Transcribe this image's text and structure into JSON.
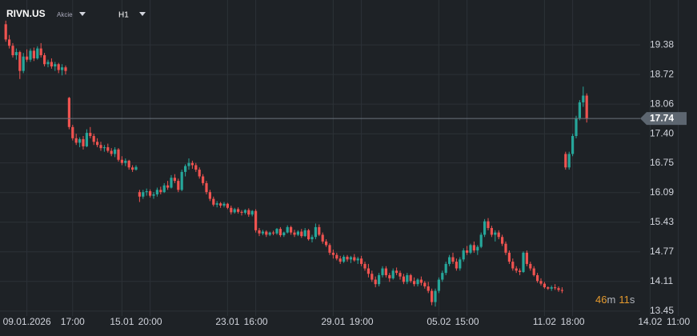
{
  "header": {
    "symbol": "RIVN.US",
    "kind": "Akcie",
    "interval": "H1"
  },
  "countdown": {
    "minutes": "46",
    "minutes_unit": "m",
    "seconds": "11",
    "seconds_unit": "s"
  },
  "chart_data": {
    "type": "candlestick",
    "up_color": "#26a69a",
    "down_color": "#ef5350",
    "grid": true,
    "ylim": [
      13.34,
      20.38
    ],
    "yticks": [
      19.38,
      18.72,
      18.06,
      {
        "value": 17.4,
        "label": "17.40"
      },
      16.75,
      16.09,
      15.43,
      14.77,
      14.11,
      13.45
    ],
    "last_price": 17.74,
    "categories": [
      null,
      null,
      null,
      null,
      null,
      null,
      "09.01.2026",
      null,
      null,
      null,
      null,
      null,
      null,
      null,
      null,
      null,
      null,
      null,
      null,
      "17:00",
      null,
      null,
      null,
      null,
      null,
      null,
      null,
      null,
      null,
      null,
      null,
      null,
      null,
      "15.01",
      null,
      null,
      null,
      null,
      null,
      null,
      null,
      "20:00",
      null,
      null,
      null,
      null,
      null,
      null,
      null,
      null,
      null,
      null,
      null,
      null,
      null,
      null,
      null,
      null,
      null,
      null,
      null,
      null,
      null,
      "23.01",
      null,
      null,
      null,
      null,
      null,
      null,
      null,
      "16:00",
      null,
      null,
      null,
      null,
      null,
      null,
      null,
      null,
      null,
      null,
      null,
      null,
      null,
      null,
      null,
      null,
      null,
      null,
      null,
      null,
      null,
      "29.01",
      null,
      null,
      null,
      null,
      null,
      null,
      null,
      "19:00",
      null,
      null,
      null,
      null,
      null,
      null,
      null,
      null,
      null,
      null,
      null,
      null,
      null,
      null,
      null,
      null,
      null,
      null,
      null,
      null,
      null,
      "05.02",
      null,
      null,
      null,
      null,
      null,
      null,
      null,
      "15:00",
      null,
      null,
      null,
      null,
      null,
      null,
      null,
      null,
      null,
      null,
      null,
      null,
      null,
      null,
      null,
      null,
      null,
      null,
      null,
      null,
      null,
      "11.02",
      null,
      null,
      null,
      null,
      null,
      null,
      null,
      "18:00",
      null,
      null,
      null,
      null,
      null,
      null,
      null,
      null,
      null,
      null,
      null,
      null,
      null,
      null,
      null,
      null,
      null,
      null,
      null,
      null,
      null,
      "14.02",
      null,
      null,
      null,
      null,
      null,
      null,
      null,
      "11:00"
    ],
    "ohlc": [
      [
        19.84,
        19.92,
        19.45,
        19.5
      ],
      [
        19.5,
        19.6,
        19.3,
        19.36
      ],
      [
        19.36,
        19.42,
        19.1,
        19.15
      ],
      [
        19.15,
        19.3,
        19.05,
        19.22
      ],
      [
        19.22,
        19.25,
        18.62,
        18.8
      ],
      [
        18.8,
        19.2,
        18.75,
        19.12
      ],
      [
        19.12,
        19.28,
        19.0,
        19.05
      ],
      [
        19.05,
        19.3,
        19.0,
        19.25
      ],
      [
        19.25,
        19.32,
        19.02,
        19.08
      ],
      [
        19.08,
        19.35,
        19.05,
        19.3
      ],
      [
        19.3,
        19.42,
        19.1,
        19.15
      ],
      [
        19.15,
        19.2,
        18.9,
        18.95
      ],
      [
        18.95,
        19.05,
        18.88,
        19.0
      ],
      [
        19.0,
        19.08,
        18.85,
        18.9
      ],
      [
        18.9,
        19.0,
        18.8,
        18.95
      ],
      [
        18.95,
        18.98,
        18.75,
        18.82
      ],
      [
        18.82,
        18.95,
        18.7,
        18.88
      ],
      [
        18.88,
        18.92,
        18.72,
        18.8
      ],
      [
        18.2,
        18.22,
        17.5,
        17.55
      ],
      [
        17.55,
        17.6,
        17.25,
        17.3
      ],
      [
        17.3,
        17.4,
        17.15,
        17.2
      ],
      [
        17.2,
        17.32,
        17.1,
        17.28
      ],
      [
        17.28,
        17.35,
        17.05,
        17.12
      ],
      [
        17.12,
        17.5,
        17.1,
        17.42
      ],
      [
        17.42,
        17.55,
        17.3,
        17.35
      ],
      [
        17.35,
        17.4,
        17.15,
        17.22
      ],
      [
        17.22,
        17.3,
        17.1,
        17.15
      ],
      [
        17.15,
        17.22,
        17.02,
        17.08
      ],
      [
        17.08,
        17.15,
        17.0,
        17.1
      ],
      [
        17.1,
        17.18,
        16.98,
        17.02
      ],
      [
        17.02,
        17.08,
        16.9,
        16.95
      ],
      [
        16.95,
        17.1,
        16.88,
        17.05
      ],
      [
        17.05,
        17.08,
        16.78,
        16.82
      ],
      [
        16.82,
        16.9,
        16.7,
        16.75
      ],
      [
        16.75,
        16.85,
        16.68,
        16.8
      ],
      [
        16.8,
        16.82,
        16.6,
        16.65
      ],
      [
        16.65,
        16.7,
        16.55,
        16.6
      ],
      [
        16.6,
        16.7,
        16.58,
        16.66
      ],
      [
        16.1,
        16.15,
        15.88,
        16.0
      ],
      [
        16.0,
        16.15,
        15.95,
        16.1
      ],
      [
        16.1,
        16.18,
        16.02,
        16.12
      ],
      [
        16.12,
        16.16,
        15.98,
        16.02
      ],
      [
        16.02,
        16.1,
        15.95,
        16.05
      ],
      [
        16.05,
        16.2,
        16.0,
        16.15
      ],
      [
        16.15,
        16.22,
        16.05,
        16.1
      ],
      [
        16.1,
        16.3,
        16.08,
        16.25
      ],
      [
        16.25,
        16.35,
        16.15,
        16.2
      ],
      [
        16.2,
        16.48,
        16.18,
        16.42
      ],
      [
        16.42,
        16.5,
        16.3,
        16.35
      ],
      [
        16.35,
        16.4,
        16.1,
        16.15
      ],
      [
        16.15,
        16.6,
        16.12,
        16.55
      ],
      [
        16.55,
        16.72,
        16.45,
        16.68
      ],
      [
        16.68,
        16.85,
        16.6,
        16.75
      ],
      [
        16.75,
        16.8,
        16.62,
        16.7
      ],
      [
        16.7,
        16.75,
        16.55,
        16.6
      ],
      [
        16.6,
        16.65,
        16.4,
        16.45
      ],
      [
        16.45,
        16.5,
        16.25,
        16.3
      ],
      [
        16.3,
        16.35,
        16.05,
        16.1
      ],
      [
        16.1,
        16.15,
        15.9,
        15.95
      ],
      [
        15.95,
        16.0,
        15.78,
        15.82
      ],
      [
        15.82,
        15.9,
        15.76,
        15.85
      ],
      [
        15.85,
        15.88,
        15.75,
        15.8
      ],
      [
        15.8,
        15.88,
        15.76,
        15.84
      ],
      [
        15.84,
        15.86,
        15.72,
        15.75
      ],
      [
        15.75,
        15.8,
        15.6,
        15.65
      ],
      [
        15.65,
        15.75,
        15.62,
        15.72
      ],
      [
        15.72,
        15.76,
        15.62,
        15.66
      ],
      [
        15.66,
        15.7,
        15.58,
        15.64
      ],
      [
        15.64,
        15.72,
        15.6,
        15.7
      ],
      [
        15.7,
        15.74,
        15.55,
        15.6
      ],
      [
        15.6,
        15.7,
        15.56,
        15.68
      ],
      [
        15.68,
        15.72,
        15.2,
        15.25
      ],
      [
        15.25,
        15.3,
        15.12,
        15.18
      ],
      [
        15.18,
        15.26,
        15.14,
        15.22
      ],
      [
        15.22,
        15.25,
        15.1,
        15.15
      ],
      [
        15.15,
        15.22,
        15.12,
        15.2
      ],
      [
        15.2,
        15.24,
        15.14,
        15.18
      ],
      [
        15.18,
        15.3,
        15.15,
        15.28
      ],
      [
        15.28,
        15.32,
        15.1,
        15.14
      ],
      [
        15.14,
        15.22,
        15.1,
        15.2
      ],
      [
        15.2,
        15.36,
        15.18,
        15.32
      ],
      [
        15.32,
        15.35,
        15.15,
        15.2
      ],
      [
        15.2,
        15.26,
        15.1,
        15.15
      ],
      [
        15.15,
        15.25,
        15.12,
        15.22
      ],
      [
        15.22,
        15.28,
        15.08,
        15.12
      ],
      [
        15.12,
        15.3,
        15.1,
        15.25
      ],
      [
        15.25,
        15.28,
        15.02,
        15.05
      ],
      [
        15.05,
        15.15,
        14.98,
        15.1
      ],
      [
        15.1,
        15.4,
        15.05,
        15.32
      ],
      [
        15.32,
        15.38,
        15.12,
        15.15
      ],
      [
        15.15,
        15.2,
        14.95,
        15.0
      ],
      [
        15.0,
        15.05,
        14.88,
        14.92
      ],
      [
        14.92,
        14.96,
        14.7,
        14.75
      ],
      [
        14.75,
        14.82,
        14.62,
        14.7
      ],
      [
        14.7,
        14.75,
        14.58,
        14.62
      ],
      [
        14.62,
        14.68,
        14.5,
        14.55
      ],
      [
        14.55,
        14.7,
        14.52,
        14.66
      ],
      [
        14.66,
        14.7,
        14.55,
        14.6
      ],
      [
        14.6,
        14.68,
        14.52,
        14.65
      ],
      [
        14.65,
        14.72,
        14.55,
        14.58
      ],
      [
        14.58,
        14.66,
        14.5,
        14.62
      ],
      [
        14.62,
        14.68,
        14.45,
        14.5
      ],
      [
        14.5,
        14.55,
        14.35,
        14.4
      ],
      [
        14.4,
        14.5,
        14.2,
        14.28
      ],
      [
        14.28,
        14.35,
        14.1,
        14.15
      ],
      [
        14.15,
        14.22,
        13.98,
        14.05
      ],
      [
        14.05,
        14.3,
        14.0,
        14.25
      ],
      [
        14.25,
        14.45,
        14.2,
        14.4
      ],
      [
        14.4,
        14.45,
        14.2,
        14.25
      ],
      [
        14.25,
        14.3,
        14.1,
        14.18
      ],
      [
        14.18,
        14.4,
        14.15,
        14.35
      ],
      [
        14.35,
        14.42,
        14.25,
        14.3
      ],
      [
        14.3,
        14.35,
        14.15,
        14.22
      ],
      [
        14.22,
        14.28,
        14.05,
        14.1
      ],
      [
        14.1,
        14.3,
        14.05,
        14.25
      ],
      [
        14.25,
        14.28,
        14.08,
        14.12
      ],
      [
        14.12,
        14.2,
        14.0,
        14.05
      ],
      [
        14.05,
        14.18,
        14.0,
        14.15
      ],
      [
        14.15,
        14.22,
        14.02,
        14.08
      ],
      [
        14.08,
        14.12,
        13.95,
        14.0
      ],
      [
        14.0,
        14.1,
        13.85,
        13.9
      ],
      [
        13.9,
        13.95,
        13.58,
        13.65
      ],
      [
        13.65,
        13.95,
        13.55,
        13.9
      ],
      [
        13.9,
        14.2,
        13.85,
        14.15
      ],
      [
        14.15,
        14.35,
        14.1,
        14.3
      ],
      [
        14.3,
        14.55,
        14.25,
        14.5
      ],
      [
        14.5,
        14.7,
        14.45,
        14.65
      ],
      [
        14.65,
        14.75,
        14.5,
        14.55
      ],
      [
        14.55,
        14.62,
        14.35,
        14.4
      ],
      [
        14.4,
        14.65,
        14.35,
        14.6
      ],
      [
        14.6,
        14.85,
        14.55,
        14.8
      ],
      [
        14.8,
        14.9,
        14.7,
        14.75
      ],
      [
        14.75,
        14.95,
        14.72,
        14.92
      ],
      [
        14.92,
        15.0,
        14.75,
        14.8
      ],
      [
        14.8,
        14.92,
        14.7,
        14.88
      ],
      [
        14.88,
        15.2,
        14.85,
        15.15
      ],
      [
        15.15,
        15.5,
        15.1,
        15.45
      ],
      [
        15.45,
        15.52,
        15.25,
        15.3
      ],
      [
        15.3,
        15.35,
        15.1,
        15.15
      ],
      [
        15.15,
        15.25,
        15.0,
        15.2
      ],
      [
        15.2,
        15.25,
        15.05,
        15.1
      ],
      [
        15.1,
        15.15,
        14.9,
        14.95
      ],
      [
        14.95,
        15.0,
        14.7,
        14.75
      ],
      [
        14.75,
        14.8,
        14.5,
        14.55
      ],
      [
        14.55,
        14.62,
        14.35,
        14.4
      ],
      [
        14.4,
        14.45,
        14.3,
        14.35
      ],
      [
        14.35,
        14.4,
        14.25,
        14.32
      ],
      [
        14.32,
        14.78,
        14.3,
        14.75
      ],
      [
        14.75,
        14.8,
        14.45,
        14.5
      ],
      [
        14.5,
        14.55,
        14.35,
        14.4
      ],
      [
        14.4,
        14.45,
        14.22,
        14.25
      ],
      [
        14.25,
        14.3,
        14.08,
        14.12
      ],
      [
        14.12,
        14.18,
        14.02,
        14.06
      ],
      [
        14.06,
        14.1,
        13.95,
        13.98
      ],
      [
        13.98,
        14.0,
        13.92,
        13.95
      ],
      [
        13.95,
        14.02,
        13.9,
        13.98
      ],
      [
        13.98,
        14.05,
        13.92,
        13.96
      ],
      [
        13.96,
        14.0,
        13.88,
        13.92
      ],
      [
        13.92,
        13.98,
        13.85,
        13.9
      ],
      [
        16.95,
        17.0,
        16.6,
        16.65
      ],
      [
        16.65,
        17.0,
        16.6,
        16.95
      ],
      [
        16.95,
        17.4,
        16.9,
        17.35
      ],
      [
        17.35,
        17.8,
        17.3,
        17.75
      ],
      [
        17.75,
        18.15,
        17.7,
        18.1
      ],
      [
        18.1,
        18.45,
        18.0,
        18.25
      ],
      [
        18.25,
        18.3,
        17.65,
        17.74
      ],
      null,
      null,
      null,
      null,
      null,
      null,
      null,
      null,
      null,
      null,
      null,
      null,
      null,
      null,
      null,
      null,
      null,
      null,
      null,
      null,
      null,
      null,
      null,
      null,
      null,
      null
    ]
  }
}
